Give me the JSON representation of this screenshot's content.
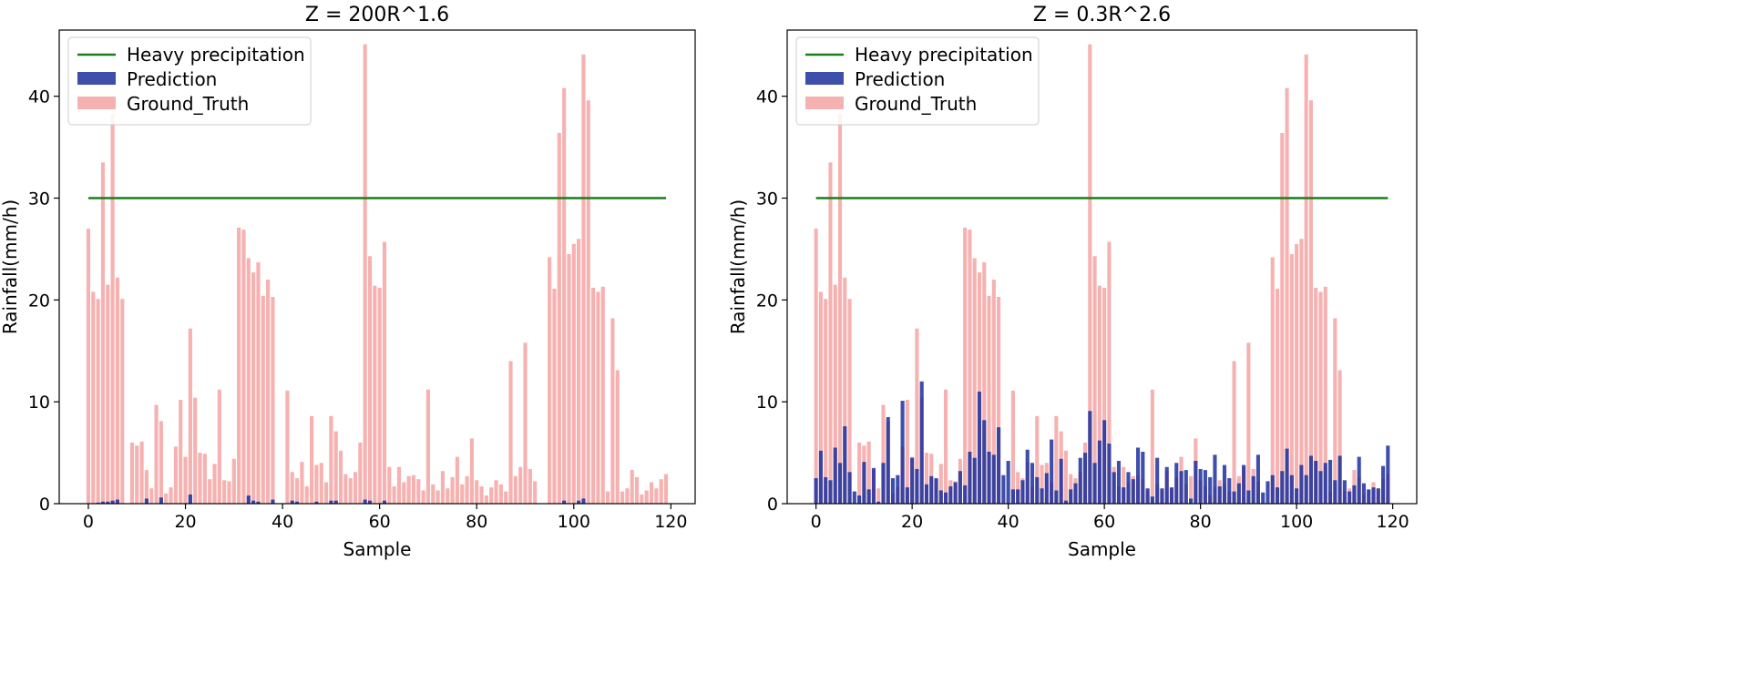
{
  "chart_data": [
    {
      "type": "bar",
      "title": "Z = 200R^1.6",
      "xlabel": "Sample",
      "ylabel": "Rainfall(mm/h)",
      "xlim": [
        -6,
        125
      ],
      "ylim": [
        0,
        46.5
      ],
      "xticks": [
        0,
        20,
        40,
        60,
        80,
        100,
        120
      ],
      "yticks": [
        0,
        10,
        20,
        30,
        40
      ],
      "legend_position": "top-left",
      "legend": [
        "Heavy precipitation",
        "Prediction",
        "Ground_Truth"
      ],
      "threshold": {
        "name": "Heavy precipitation",
        "value": 30,
        "x_range": [
          0,
          119
        ],
        "color": "#1a7f1a"
      },
      "colors": {
        "prediction": "#1c2f9c",
        "ground_truth": "#f5a3a3"
      },
      "ground_truth": [
        27.0,
        20.8,
        20.1,
        33.5,
        21.5,
        38.3,
        22.2,
        20.1,
        0.0,
        6.0,
        5.7,
        6.1,
        3.3,
        1.5,
        9.7,
        8.1,
        1.0,
        1.6,
        5.6,
        10.2,
        4.6,
        17.2,
        10.4,
        5.0,
        4.9,
        2.4,
        3.9,
        11.2,
        2.3,
        2.2,
        4.4,
        27.1,
        26.9,
        24.1,
        22.7,
        23.7,
        20.4,
        22.0,
        20.3,
        0.0,
        0.0,
        11.1,
        3.1,
        2.5,
        4.1,
        1.7,
        8.6,
        3.8,
        4.0,
        2.1,
        8.6,
        7.1,
        5.2,
        2.9,
        2.5,
        3.1,
        6.0,
        45.1,
        24.3,
        21.4,
        21.2,
        25.7,
        3.6,
        1.7,
        3.6,
        2.1,
        2.7,
        2.8,
        2.4,
        1.3,
        11.2,
        1.9,
        1.3,
        3.2,
        1.5,
        2.6,
        4.6,
        1.9,
        2.7,
        6.4,
        2.3,
        1.7,
        0.8,
        1.6,
        2.3,
        1.9,
        1.2,
        14.0,
        2.7,
        3.6,
        15.8,
        3.4,
        2.2,
        0.0,
        0.0,
        24.2,
        21.1,
        36.4,
        40.8,
        24.5,
        25.5,
        26.0,
        44.1,
        39.6,
        21.2,
        20.8,
        21.3,
        1.2,
        18.2,
        13.1,
        1.2,
        1.5,
        3.3,
        2.6,
        0.9,
        1.3,
        2.1,
        1.5,
        2.4,
        2.9
      ],
      "prediction": [
        0.0,
        0.0,
        0.1,
        0.2,
        0.2,
        0.3,
        0.4,
        0.0,
        0.0,
        0.0,
        0.0,
        0.0,
        0.5,
        0.0,
        0.0,
        0.6,
        0.0,
        0.0,
        0.0,
        0.0,
        0.0,
        0.9,
        0.0,
        0.0,
        0.0,
        0.0,
        0.0,
        0.0,
        0.0,
        0.0,
        0.0,
        0.0,
        0.0,
        0.8,
        0.3,
        0.2,
        0.0,
        0.0,
        0.4,
        0.0,
        0.0,
        0.0,
        0.3,
        0.2,
        0.0,
        0.0,
        0.0,
        0.2,
        0.0,
        0.0,
        0.3,
        0.3,
        0.0,
        0.0,
        0.0,
        0.0,
        0.0,
        0.4,
        0.3,
        0.0,
        0.0,
        0.3,
        0.0,
        0.0,
        0.0,
        0.0,
        0.0,
        0.0,
        0.0,
        0.0,
        0.0,
        0.0,
        0.0,
        0.0,
        0.0,
        0.0,
        0.0,
        0.0,
        0.0,
        0.0,
        0.0,
        0.0,
        0.0,
        0.0,
        0.0,
        0.0,
        0.0,
        0.0,
        0.0,
        0.0,
        0.0,
        0.0,
        0.0,
        0.0,
        0.0,
        0.0,
        0.0,
        0.0,
        0.3,
        0.0,
        0.0,
        0.3,
        0.5,
        0.0,
        0.0,
        0.0,
        0.0,
        0.0,
        0.0,
        0.0,
        0.0,
        0.0,
        0.0,
        0.0,
        0.0,
        0.0,
        0.0,
        0.0,
        0.0,
        0.0
      ]
    },
    {
      "type": "bar",
      "title": "Z = 0.3R^2.6",
      "xlabel": "Sample",
      "ylabel": "Rainfall(mm/h)",
      "xlim": [
        -6,
        125
      ],
      "ylim": [
        0,
        46.5
      ],
      "xticks": [
        0,
        20,
        40,
        60,
        80,
        100,
        120
      ],
      "yticks": [
        0,
        10,
        20,
        30,
        40
      ],
      "legend_position": "top-left",
      "legend": [
        "Heavy precipitation",
        "Prediction",
        "Ground_Truth"
      ],
      "threshold": {
        "name": "Heavy precipitation",
        "value": 30,
        "x_range": [
          0,
          119
        ],
        "color": "#1a7f1a"
      },
      "colors": {
        "prediction": "#1c2f9c",
        "ground_truth": "#f5a3a3"
      },
      "ground_truth": [
        27.0,
        20.8,
        20.1,
        33.5,
        21.5,
        38.3,
        22.2,
        20.1,
        0.0,
        6.0,
        5.7,
        6.1,
        3.3,
        1.5,
        9.7,
        8.1,
        1.0,
        1.6,
        5.6,
        10.2,
        4.6,
        17.2,
        10.4,
        5.0,
        4.9,
        2.4,
        3.9,
        11.2,
        2.3,
        2.2,
        4.4,
        27.1,
        26.9,
        24.1,
        22.7,
        23.7,
        20.4,
        22.0,
        20.3,
        0.0,
        0.0,
        11.1,
        3.1,
        2.5,
        4.1,
        1.7,
        8.6,
        3.8,
        4.0,
        2.1,
        8.6,
        7.1,
        5.2,
        2.9,
        2.5,
        3.1,
        6.0,
        45.1,
        24.3,
        21.4,
        21.2,
        25.7,
        3.6,
        1.7,
        3.6,
        2.1,
        2.7,
        2.8,
        2.4,
        1.3,
        11.2,
        1.9,
        1.3,
        3.2,
        1.5,
        2.6,
        4.6,
        1.9,
        2.7,
        6.4,
        2.3,
        1.7,
        0.8,
        1.6,
        2.3,
        1.9,
        1.2,
        14.0,
        2.7,
        3.6,
        15.8,
        3.4,
        2.2,
        0.0,
        0.0,
        24.2,
        21.1,
        36.4,
        40.8,
        24.5,
        25.5,
        26.0,
        44.1,
        39.6,
        21.2,
        20.8,
        21.3,
        1.2,
        18.2,
        13.1,
        1.2,
        1.5,
        3.3,
        2.6,
        0.9,
        1.3,
        2.1,
        1.5,
        2.4,
        2.9
      ],
      "prediction": [
        2.5,
        5.2,
        2.6,
        2.3,
        5.5,
        4.0,
        7.6,
        3.1,
        1.2,
        0.8,
        4.1,
        1.4,
        3.5,
        0.2,
        4.0,
        8.5,
        2.5,
        2.8,
        10.1,
        1.6,
        4.5,
        3.4,
        12.0,
        1.9,
        2.7,
        2.5,
        1.3,
        1.1,
        1.7,
        2.1,
        3.2,
        1.8,
        5.1,
        4.5,
        11.0,
        8.2,
        5.1,
        4.8,
        7.5,
        2.8,
        4.2,
        1.4,
        1.4,
        2.3,
        5.3,
        4.0,
        2.6,
        1.5,
        3.0,
        6.3,
        1.3,
        4.4,
        0.3,
        1.4,
        2.0,
        4.5,
        5.0,
        9.1,
        4.0,
        6.2,
        8.2,
        5.9,
        3.1,
        4.2,
        1.6,
        3.1,
        2.4,
        5.5,
        5.1,
        1.5,
        0.7,
        4.5,
        1.5,
        3.6,
        1.6,
        4.0,
        3.2,
        3.3,
        0.5,
        4.2,
        3.4,
        3.3,
        2.6,
        4.8,
        1.7,
        3.8,
        2.5,
        1.2,
        2.0,
        3.8,
        1.3,
        2.7,
        4.8,
        1.1,
        2.2,
        2.8,
        1.6,
        3.2,
        5.4,
        2.8,
        1.5,
        3.8,
        2.8,
        4.7,
        4.2,
        3.2,
        4.0,
        4.3,
        2.3,
        4.7,
        2.3,
        1.2,
        1.8,
        4.6,
        2.0,
        1.4,
        1.6,
        1.5,
        3.7,
        5.7
      ]
    }
  ]
}
